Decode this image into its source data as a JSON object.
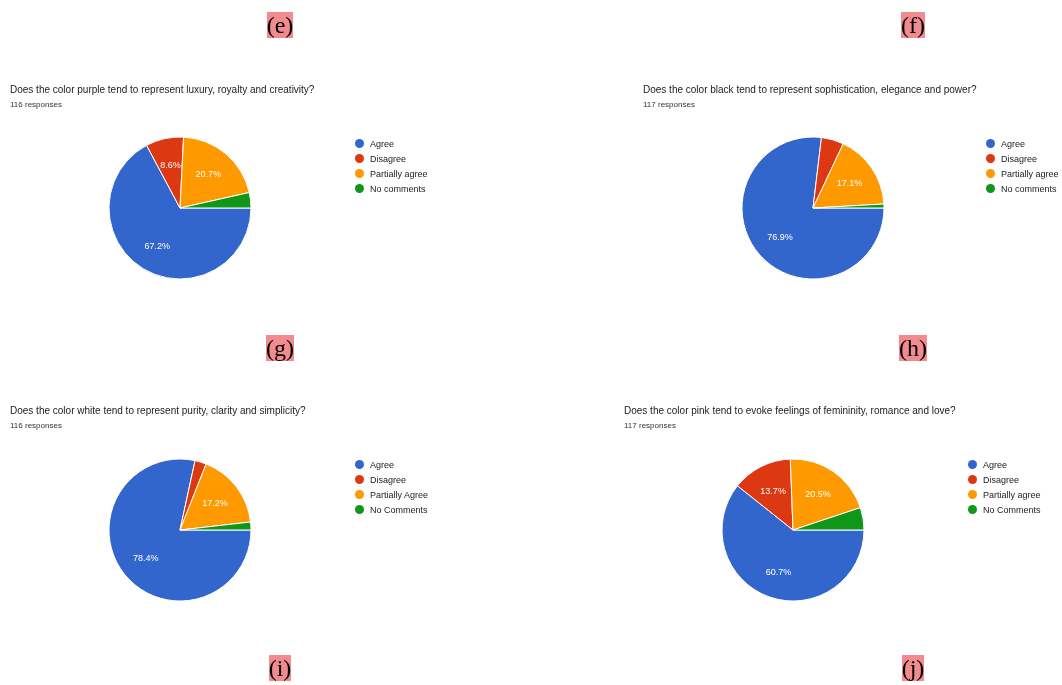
{
  "chart_data": [
    {
      "type": "pie",
      "title": "Does the color purple tend to represent luxury, royalty and creativity?",
      "subtitle": "116 responses",
      "annotations": [
        "(e)",
        "(g)"
      ],
      "legend": "right",
      "categories": [
        "Agree",
        "Disagree",
        "Partially agree",
        "No comments"
      ],
      "values": [
        67.2,
        8.6,
        20.7,
        3.5
      ],
      "value_labels": [
        "67.2%",
        "8.6%",
        "20.7%",
        null
      ],
      "colors": [
        "#3366cc",
        "#dc3912",
        "#ff9900",
        "#109618"
      ]
    },
    {
      "type": "pie",
      "title": "Does the color black tend to represent sophistication, elegance and power?",
      "subtitle": "117 responses",
      "annotations": [
        "(f)",
        "(h)"
      ],
      "legend": "right",
      "categories": [
        "Agree",
        "Disagree",
        "Partially agree",
        "No comments"
      ],
      "values": [
        76.9,
        5.1,
        17.1,
        0.9
      ],
      "value_labels": [
        "76.9%",
        null,
        "17.1%",
        null
      ],
      "colors": [
        "#3366cc",
        "#dc3912",
        "#ff9900",
        "#109618"
      ]
    },
    {
      "type": "pie",
      "title": "Does the color white tend to represent purity, clarity and simplicity?",
      "subtitle": "116 responses",
      "annotations": [
        "(i)"
      ],
      "legend": "right",
      "categories": [
        "Agree",
        "Disagree",
        "Partially Agree",
        "No Comments"
      ],
      "values": [
        78.4,
        2.6,
        17.2,
        1.8
      ],
      "value_labels": [
        "78.4%",
        null,
        "17.2%",
        null
      ],
      "colors": [
        "#3366cc",
        "#dc3912",
        "#ff9900",
        "#109618"
      ]
    },
    {
      "type": "pie",
      "title": "Does the color pink tend to evoke feelings of femininity, romance and love?",
      "subtitle": "117 responses",
      "annotations": [
        "(j)"
      ],
      "legend": "right",
      "categories": [
        "Agree",
        "Disagree",
        "Partially agree",
        "No Comments"
      ],
      "values": [
        60.7,
        13.7,
        20.5,
        5.1
      ],
      "value_labels": [
        "60.7%",
        "13.7%",
        "20.5%",
        null
      ],
      "colors": [
        "#3366cc",
        "#dc3912",
        "#ff9900",
        "#109618"
      ]
    }
  ]
}
